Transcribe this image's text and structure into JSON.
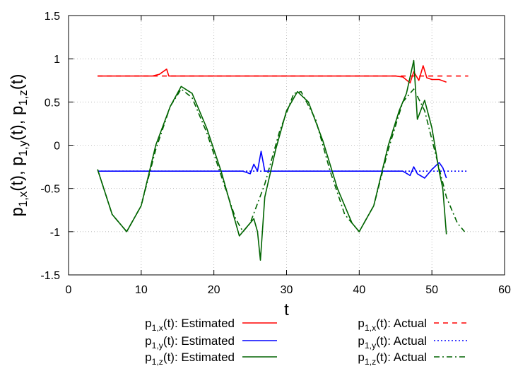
{
  "chart_data": {
    "type": "line",
    "xlabel": "t",
    "ylabel_parts": [
      {
        "base": "p",
        "sub": "1,x",
        "rest": "(t), "
      },
      {
        "base": "p",
        "sub": "1,y",
        "rest": "(t), "
      },
      {
        "base": "p",
        "sub": "1,z",
        "rest": "(t)"
      }
    ],
    "xlim": [
      0,
      60
    ],
    "ylim": [
      -1.5,
      1.5
    ],
    "xticks": [
      0,
      10,
      20,
      30,
      40,
      50,
      60
    ],
    "yticks": [
      -1.5,
      -1,
      -0.5,
      0,
      0.5,
      1,
      1.5
    ],
    "yticklabels": [
      "-1.5",
      "-1",
      "-0.5",
      "0",
      "0.5",
      "1",
      "1.5"
    ],
    "grid": true,
    "legend_position": "bottom",
    "series": [
      {
        "base": "p",
        "sub": "1,x",
        "label_rest": "(t): Estimated",
        "color": "#ff0000",
        "style": "solid",
        "points": [
          [
            4,
            0.8
          ],
          [
            11.5,
            0.8
          ],
          [
            12.5,
            0.82
          ],
          [
            13.5,
            0.88
          ],
          [
            13.8,
            0.8
          ],
          [
            18,
            0.8
          ],
          [
            25,
            0.8
          ],
          [
            30,
            0.8
          ],
          [
            40,
            0.8
          ],
          [
            45,
            0.8
          ],
          [
            46,
            0.79
          ],
          [
            47,
            0.72
          ],
          [
            47.5,
            0.85
          ],
          [
            48.2,
            0.75
          ],
          [
            48.8,
            0.92
          ],
          [
            49.3,
            0.78
          ],
          [
            50,
            0.76
          ],
          [
            51,
            0.76
          ],
          [
            52,
            0.73
          ]
        ]
      },
      {
        "base": "p",
        "sub": "1,y",
        "label_rest": "(t): Estimated",
        "color": "#0000ff",
        "style": "solid",
        "points": [
          [
            4,
            -0.3
          ],
          [
            12,
            -0.3
          ],
          [
            20,
            -0.3
          ],
          [
            24,
            -0.3
          ],
          [
            25,
            -0.33
          ],
          [
            25.5,
            -0.22
          ],
          [
            26,
            -0.3
          ],
          [
            26.5,
            -0.07
          ],
          [
            27,
            -0.3
          ],
          [
            30,
            -0.3
          ],
          [
            40,
            -0.3
          ],
          [
            46,
            -0.3
          ],
          [
            47,
            -0.35
          ],
          [
            47.5,
            -0.25
          ],
          [
            48,
            -0.33
          ],
          [
            49,
            -0.38
          ],
          [
            50,
            -0.28
          ],
          [
            51,
            -0.2
          ],
          [
            51.5,
            -0.26
          ],
          [
            52,
            -0.38
          ]
        ]
      },
      {
        "base": "p",
        "sub": "1,z",
        "label_rest": "(t): Estimated",
        "color": "#006400",
        "style": "solid",
        "points": [
          [
            4,
            -0.28
          ],
          [
            6,
            -0.8
          ],
          [
            8,
            -1
          ],
          [
            10,
            -0.7
          ],
          [
            12,
            0
          ],
          [
            14,
            0.45
          ],
          [
            15.5,
            0.68
          ],
          [
            17,
            0.6
          ],
          [
            19,
            0.2
          ],
          [
            21,
            -0.3
          ],
          [
            22.5,
            -0.75
          ],
          [
            23.5,
            -1.05
          ],
          [
            24.5,
            -0.95
          ],
          [
            25.5,
            -0.85
          ],
          [
            26,
            -1.0
          ],
          [
            26.4,
            -1.33
          ],
          [
            27,
            -0.6
          ],
          [
            28.5,
            -0.05
          ],
          [
            30,
            0.4
          ],
          [
            31.5,
            0.62
          ],
          [
            33,
            0.5
          ],
          [
            35,
            0.05
          ],
          [
            37,
            -0.5
          ],
          [
            39,
            -0.9
          ],
          [
            40,
            -1.0
          ],
          [
            42,
            -0.7
          ],
          [
            44,
            0.0
          ],
          [
            45.5,
            0.4
          ],
          [
            46.5,
            0.6
          ],
          [
            47.5,
            0.98
          ],
          [
            48,
            0.3
          ],
          [
            49,
            0.52
          ],
          [
            50,
            0.2
          ],
          [
            51,
            -0.3
          ],
          [
            51.5,
            -0.5
          ],
          [
            52,
            -1.03
          ]
        ]
      },
      {
        "base": "p",
        "sub": "1,x",
        "label_rest": "(t): Actual",
        "color": "#ff0000",
        "style": "dashed",
        "points": [
          [
            4,
            0.8
          ],
          [
            55,
            0.8
          ]
        ]
      },
      {
        "base": "p",
        "sub": "1,y",
        "label_rest": "(t): Actual",
        "color": "#0000ff",
        "style": "dotted",
        "points": [
          [
            4,
            -0.3
          ],
          [
            55,
            -0.3
          ]
        ]
      },
      {
        "base": "p",
        "sub": "1,z",
        "label_rest": "(t): Actual",
        "color": "#006400",
        "style": "dashdot",
        "points": [
          [
            4,
            -0.28
          ],
          [
            6,
            -0.8
          ],
          [
            8,
            -1
          ],
          [
            10,
            -0.7
          ],
          [
            12,
            -0.05
          ],
          [
            14,
            0.45
          ],
          [
            15.5,
            0.65
          ],
          [
            17,
            0.55
          ],
          [
            19,
            0.15
          ],
          [
            21,
            -0.35
          ],
          [
            23,
            -0.85
          ],
          [
            24,
            -1.0
          ],
          [
            25,
            -0.9
          ],
          [
            27,
            -0.45
          ],
          [
            29,
            0.15
          ],
          [
            31,
            0.6
          ],
          [
            32,
            0.62
          ],
          [
            34,
            0.3
          ],
          [
            36,
            -0.3
          ],
          [
            38,
            -0.8
          ],
          [
            40,
            -1.0
          ],
          [
            42,
            -0.7
          ],
          [
            44,
            -0.05
          ],
          [
            46,
            0.5
          ],
          [
            47.5,
            0.65
          ],
          [
            49,
            0.4
          ],
          [
            50.5,
            -0.1
          ],
          [
            52,
            -0.6
          ],
          [
            53.5,
            -0.9
          ],
          [
            54.5,
            -1.0
          ]
        ]
      }
    ]
  }
}
